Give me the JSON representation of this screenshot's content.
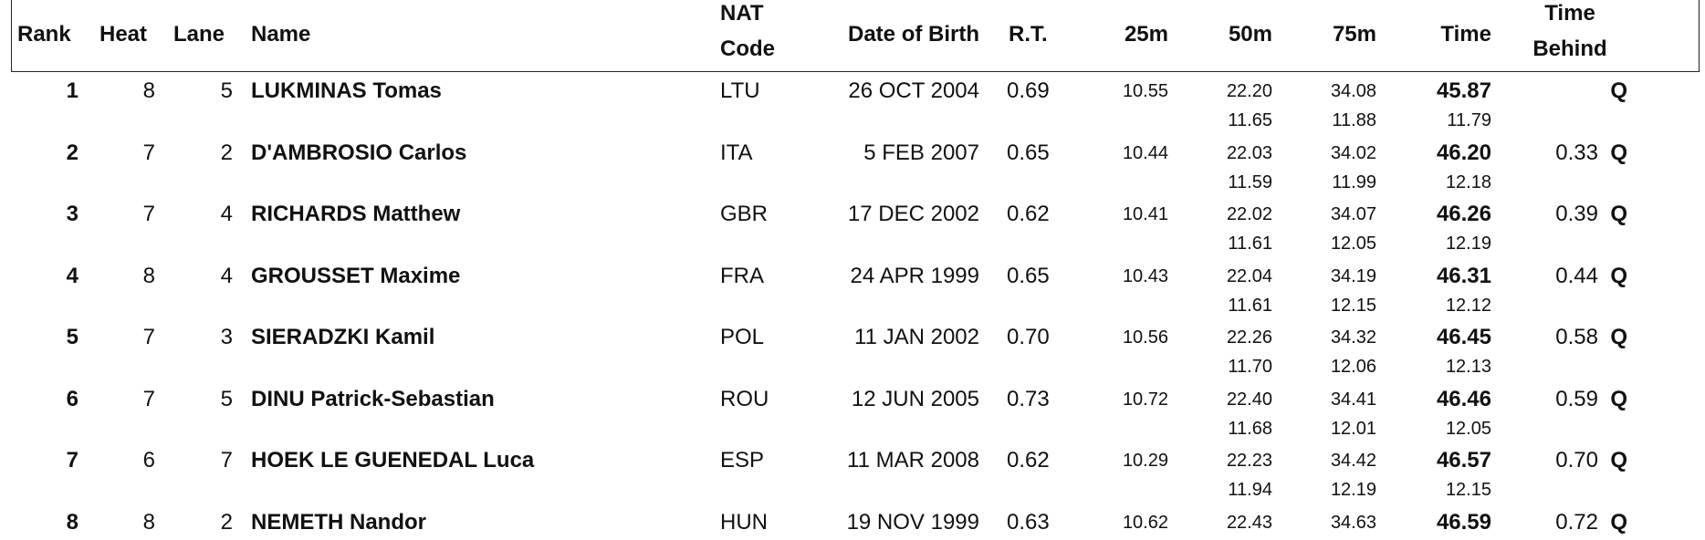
{
  "header": [
    [
      "Rank"
    ],
    [
      "Heat"
    ],
    [
      "Lane"
    ],
    [
      "Name"
    ],
    [
      "NAT",
      "Code"
    ],
    [
      "Date of Birth"
    ],
    [
      "R.T."
    ],
    [
      "25m"
    ],
    [
      "50m"
    ],
    [
      "75m"
    ],
    [
      "Time"
    ],
    [
      "Time",
      "Behind"
    ]
  ],
  "rows": [
    {
      "rank": "1",
      "heat": "8",
      "lane": "5",
      "name": "LUKMINAS Tomas",
      "nat": "LTU",
      "dob": "26 OCT 2004",
      "rt": "0.69",
      "s25": "10.55",
      "s50": "22.20",
      "s75": "34.08",
      "time": "45.87",
      "behind": null,
      "q": "Q",
      "split50": "11.65",
      "split75": "11.88",
      "splitTime": "11.79"
    },
    {
      "rank": "2",
      "heat": "7",
      "lane": "2",
      "name": "D'AMBROSIO Carlos",
      "nat": "ITA",
      "dob": "5 FEB 2007",
      "rt": "0.65",
      "s25": "10.44",
      "s50": "22.03",
      "s75": "34.02",
      "time": "46.20",
      "behind": "0.33",
      "q": "Q",
      "split50": "11.59",
      "split75": "11.99",
      "splitTime": "12.18"
    },
    {
      "rank": "3",
      "heat": "7",
      "lane": "4",
      "name": "RICHARDS Matthew",
      "nat": "GBR",
      "dob": "17 DEC 2002",
      "rt": "0.62",
      "s25": "10.41",
      "s50": "22.02",
      "s75": "34.07",
      "time": "46.26",
      "behind": "0.39",
      "q": "Q",
      "split50": "11.61",
      "split75": "12.05",
      "splitTime": "12.19"
    },
    {
      "rank": "4",
      "heat": "8",
      "lane": "4",
      "name": "GROUSSET Maxime",
      "nat": "FRA",
      "dob": "24 APR 1999",
      "rt": "0.65",
      "s25": "10.43",
      "s50": "22.04",
      "s75": "34.19",
      "time": "46.31",
      "behind": "0.44",
      "q": "Q",
      "split50": "11.61",
      "split75": "12.15",
      "splitTime": "12.12"
    },
    {
      "rank": "5",
      "heat": "7",
      "lane": "3",
      "name": "SIERADZKI Kamil",
      "nat": "POL",
      "dob": "11 JAN 2002",
      "rt": "0.70",
      "s25": "10.56",
      "s50": "22.26",
      "s75": "34.32",
      "time": "46.45",
      "behind": "0.58",
      "q": "Q",
      "split50": "11.70",
      "split75": "12.06",
      "splitTime": "12.13"
    },
    {
      "rank": "6",
      "heat": "7",
      "lane": "5",
      "name": "DINU Patrick-Sebastian",
      "nat": "ROU",
      "dob": "12 JUN 2005",
      "rt": "0.73",
      "s25": "10.72",
      "s50": "22.40",
      "s75": "34.41",
      "time": "46.46",
      "behind": "0.59",
      "q": "Q",
      "split50": "11.68",
      "split75": "12.01",
      "splitTime": "12.05"
    },
    {
      "rank": "7",
      "heat": "6",
      "lane": "7",
      "name": "HOEK LE GUENEDAL Luca",
      "nat": "ESP",
      "dob": "11 MAR 2008",
      "rt": "0.62",
      "s25": "10.29",
      "s50": "22.23",
      "s75": "34.42",
      "time": "46.57",
      "behind": "0.70",
      "q": "Q",
      "split50": "11.94",
      "split75": "12.19",
      "splitTime": "12.15"
    },
    {
      "rank": "8",
      "heat": "8",
      "lane": "2",
      "name": "NEMETH Nandor",
      "nat": "HUN",
      "dob": "19 NOV 1999",
      "rt": "0.63",
      "s25": "10.62",
      "s50": "22.43",
      "s75": "34.63",
      "time": "46.59",
      "behind": "0.72",
      "q": "Q",
      "split50": null,
      "split75": null,
      "splitTime": null
    }
  ]
}
